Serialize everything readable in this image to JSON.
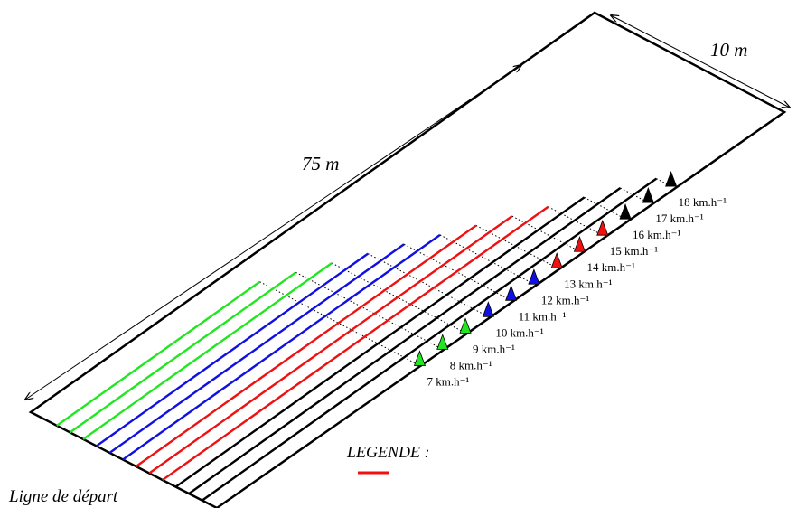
{
  "dimension_length": "75 m",
  "dimension_width": "10 m",
  "start_line_label": "Ligne de départ",
  "legend_title": "LEGENDE :",
  "colors": {
    "green": "#22e622",
    "blue": "#1010e0",
    "red": "#ee1111",
    "black": "#000000",
    "legend_swatch": "#ee1111"
  },
  "stages": [
    {
      "speed": "7 km.h⁻¹",
      "color": "green"
    },
    {
      "speed": "8 km.h⁻¹",
      "color": "green"
    },
    {
      "speed": "9 km.h⁻¹",
      "color": "green"
    },
    {
      "speed": "10 km.h⁻¹",
      "color": "blue"
    },
    {
      "speed": "11 km.h⁻¹",
      "color": "blue"
    },
    {
      "speed": "12 km.h⁻¹",
      "color": "blue"
    },
    {
      "speed": "13 km.h⁻¹",
      "color": "red"
    },
    {
      "speed": "14 km.h⁻¹",
      "color": "red"
    },
    {
      "speed": "15 km.h⁻¹",
      "color": "red"
    },
    {
      "speed": "16 km.h⁻¹",
      "color": "black"
    },
    {
      "speed": "17 km.h⁻¹",
      "color": "black"
    },
    {
      "speed": "18 km.h⁻¹",
      "color": "black"
    }
  ]
}
